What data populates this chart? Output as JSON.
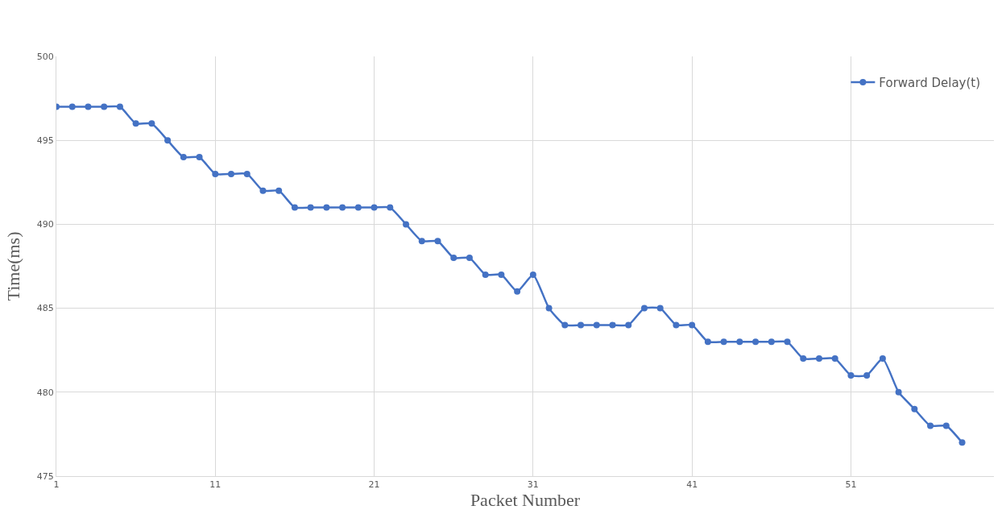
{
  "chart_data": {
    "type": "line",
    "xlabel": "Packet Number",
    "ylabel": "Time(ms)",
    "x": [
      1,
      2,
      3,
      4,
      5,
      6,
      7,
      8,
      9,
      10,
      11,
      12,
      13,
      14,
      15,
      16,
      17,
      18,
      19,
      20,
      21,
      22,
      23,
      24,
      25,
      26,
      27,
      28,
      29,
      30,
      31,
      32,
      33,
      34,
      35,
      36,
      37,
      38,
      39,
      40,
      41,
      42,
      43,
      44,
      45,
      46,
      47,
      48,
      49,
      50,
      51,
      52,
      53,
      54,
      55,
      56,
      57,
      58
    ],
    "series": [
      {
        "name": "Forward Delay(t)",
        "color": "#4472c4",
        "values": [
          497,
          497,
          497,
          497,
          497,
          496,
          496,
          495,
          494,
          494,
          493,
          493,
          493,
          492,
          492,
          491,
          491,
          491,
          491,
          491,
          491,
          491,
          490,
          489,
          489,
          488,
          488,
          487,
          487,
          486,
          487,
          485,
          484,
          484,
          484,
          484,
          484,
          485,
          485,
          484,
          484,
          483,
          483,
          483,
          483,
          483,
          483,
          482,
          482,
          482,
          481,
          481,
          482,
          480,
          479,
          478,
          478,
          477
        ]
      }
    ],
    "xlim": [
      1,
      60
    ],
    "xticks": [
      1,
      11,
      21,
      31,
      41,
      51
    ],
    "ylim": [
      475,
      500
    ],
    "yticks": [
      475,
      480,
      485,
      490,
      495,
      500
    ],
    "grid": true,
    "legend": "top right",
    "marker": "circle",
    "line_style": "solid"
  }
}
